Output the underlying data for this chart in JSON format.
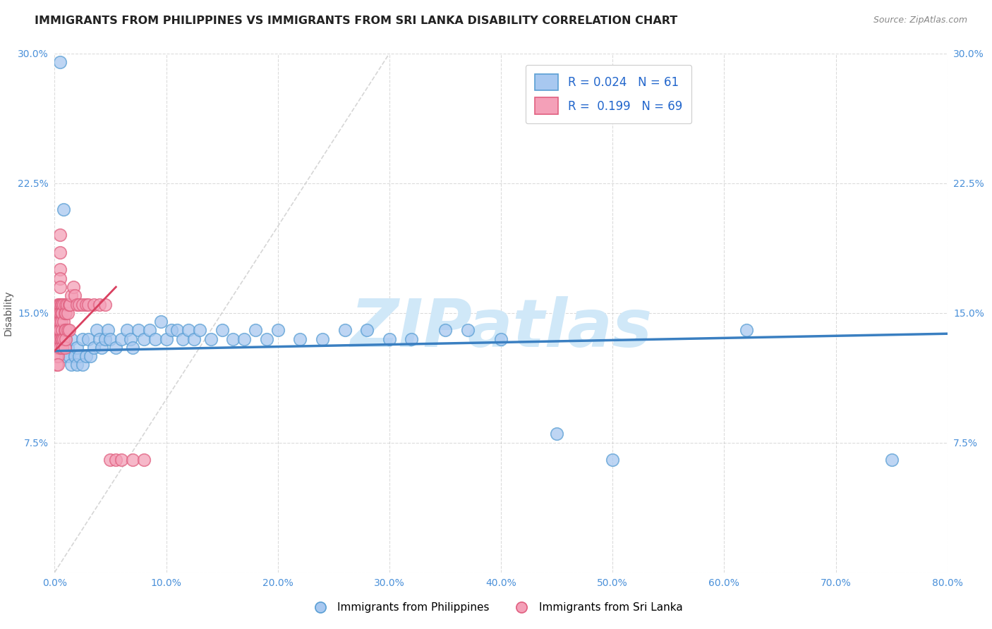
{
  "title": "IMMIGRANTS FROM PHILIPPINES VS IMMIGRANTS FROM SRI LANKA DISABILITY CORRELATION CHART",
  "source_text": "Source: ZipAtlas.com",
  "ylabel": "Disability",
  "legend_label_blue": "Immigrants from Philippines",
  "legend_label_pink": "Immigrants from Sri Lanka",
  "legend_r_blue": "R = 0.024",
  "legend_n_blue": "N = 61",
  "legend_r_pink": "R = 0.199",
  "legend_n_pink": "N = 69",
  "xlim": [
    0.0,
    0.8
  ],
  "ylim": [
    0.0,
    0.3
  ],
  "xticks": [
    0.0,
    0.1,
    0.2,
    0.3,
    0.4,
    0.5,
    0.6,
    0.7,
    0.8
  ],
  "yticks": [
    0.0,
    0.075,
    0.15,
    0.225,
    0.3
  ],
  "xtick_labels": [
    "0.0%",
    "10.0%",
    "20.0%",
    "30.0%",
    "40.0%",
    "50.0%",
    "60.0%",
    "70.0%",
    "80.0%"
  ],
  "ytick_labels": [
    "",
    "7.5%",
    "15.0%",
    "22.5%",
    "30.0%"
  ],
  "background_color": "#ffffff",
  "plot_bg_color": "#ffffff",
  "grid_color": "#cccccc",
  "blue_color": "#a8c8f0",
  "pink_color": "#f4a0b8",
  "blue_edge_color": "#5a9fd4",
  "pink_edge_color": "#e06080",
  "blue_line_color": "#3a7fc1",
  "pink_line_color": "#d94060",
  "watermark": "ZIPatlas",
  "watermark_color": "#d0e8f8",
  "blue_scatter_x": [
    0.005,
    0.008,
    0.01,
    0.01,
    0.012,
    0.013,
    0.015,
    0.015,
    0.018,
    0.02,
    0.02,
    0.022,
    0.025,
    0.025,
    0.028,
    0.03,
    0.032,
    0.035,
    0.038,
    0.04,
    0.042,
    0.045,
    0.048,
    0.05,
    0.055,
    0.06,
    0.065,
    0.068,
    0.07,
    0.075,
    0.08,
    0.085,
    0.09,
    0.095,
    0.1,
    0.105,
    0.11,
    0.115,
    0.12,
    0.125,
    0.13,
    0.14,
    0.15,
    0.16,
    0.17,
    0.18,
    0.19,
    0.2,
    0.22,
    0.24,
    0.26,
    0.28,
    0.3,
    0.32,
    0.35,
    0.37,
    0.4,
    0.45,
    0.5,
    0.62,
    0.75
  ],
  "blue_scatter_y": [
    0.295,
    0.21,
    0.135,
    0.125,
    0.13,
    0.125,
    0.12,
    0.135,
    0.125,
    0.13,
    0.12,
    0.125,
    0.135,
    0.12,
    0.125,
    0.135,
    0.125,
    0.13,
    0.14,
    0.135,
    0.13,
    0.135,
    0.14,
    0.135,
    0.13,
    0.135,
    0.14,
    0.135,
    0.13,
    0.14,
    0.135,
    0.14,
    0.135,
    0.145,
    0.135,
    0.14,
    0.14,
    0.135,
    0.14,
    0.135,
    0.14,
    0.135,
    0.14,
    0.135,
    0.135,
    0.14,
    0.135,
    0.14,
    0.135,
    0.135,
    0.14,
    0.14,
    0.135,
    0.135,
    0.14,
    0.14,
    0.135,
    0.08,
    0.065,
    0.14,
    0.065
  ],
  "pink_scatter_x": [
    0.002,
    0.002,
    0.002,
    0.002,
    0.003,
    0.003,
    0.003,
    0.003,
    0.003,
    0.003,
    0.003,
    0.003,
    0.004,
    0.004,
    0.004,
    0.004,
    0.004,
    0.005,
    0.005,
    0.005,
    0.005,
    0.005,
    0.005,
    0.005,
    0.005,
    0.005,
    0.005,
    0.005,
    0.006,
    0.006,
    0.006,
    0.006,
    0.007,
    0.007,
    0.007,
    0.007,
    0.007,
    0.008,
    0.008,
    0.008,
    0.009,
    0.009,
    0.009,
    0.01,
    0.01,
    0.01,
    0.01,
    0.011,
    0.012,
    0.012,
    0.013,
    0.013,
    0.014,
    0.015,
    0.017,
    0.018,
    0.02,
    0.022,
    0.025,
    0.028,
    0.03,
    0.035,
    0.04,
    0.045,
    0.05,
    0.055,
    0.06,
    0.07,
    0.08
  ],
  "pink_scatter_y": [
    0.135,
    0.13,
    0.125,
    0.12,
    0.155,
    0.15,
    0.145,
    0.14,
    0.135,
    0.13,
    0.125,
    0.12,
    0.155,
    0.15,
    0.145,
    0.14,
    0.135,
    0.195,
    0.185,
    0.175,
    0.17,
    0.165,
    0.155,
    0.15,
    0.145,
    0.14,
    0.135,
    0.13,
    0.155,
    0.15,
    0.145,
    0.135,
    0.155,
    0.15,
    0.14,
    0.135,
    0.13,
    0.155,
    0.145,
    0.135,
    0.15,
    0.14,
    0.13,
    0.155,
    0.15,
    0.14,
    0.135,
    0.155,
    0.15,
    0.14,
    0.155,
    0.14,
    0.155,
    0.16,
    0.165,
    0.16,
    0.155,
    0.155,
    0.155,
    0.155,
    0.155,
    0.155,
    0.155,
    0.155,
    0.065,
    0.065,
    0.065,
    0.065,
    0.065
  ],
  "blue_trend_x": [
    0.0,
    0.8
  ],
  "blue_trend_y": [
    0.128,
    0.138
  ],
  "pink_trend_x": [
    0.0,
    0.055
  ],
  "pink_trend_y": [
    0.128,
    0.165
  ],
  "diag_line_x": [
    0.0,
    0.3
  ],
  "diag_line_y": [
    0.0,
    0.3
  ],
  "title_fontsize": 11.5,
  "axis_label_fontsize": 10,
  "tick_fontsize": 10,
  "legend_fontsize": 12
}
